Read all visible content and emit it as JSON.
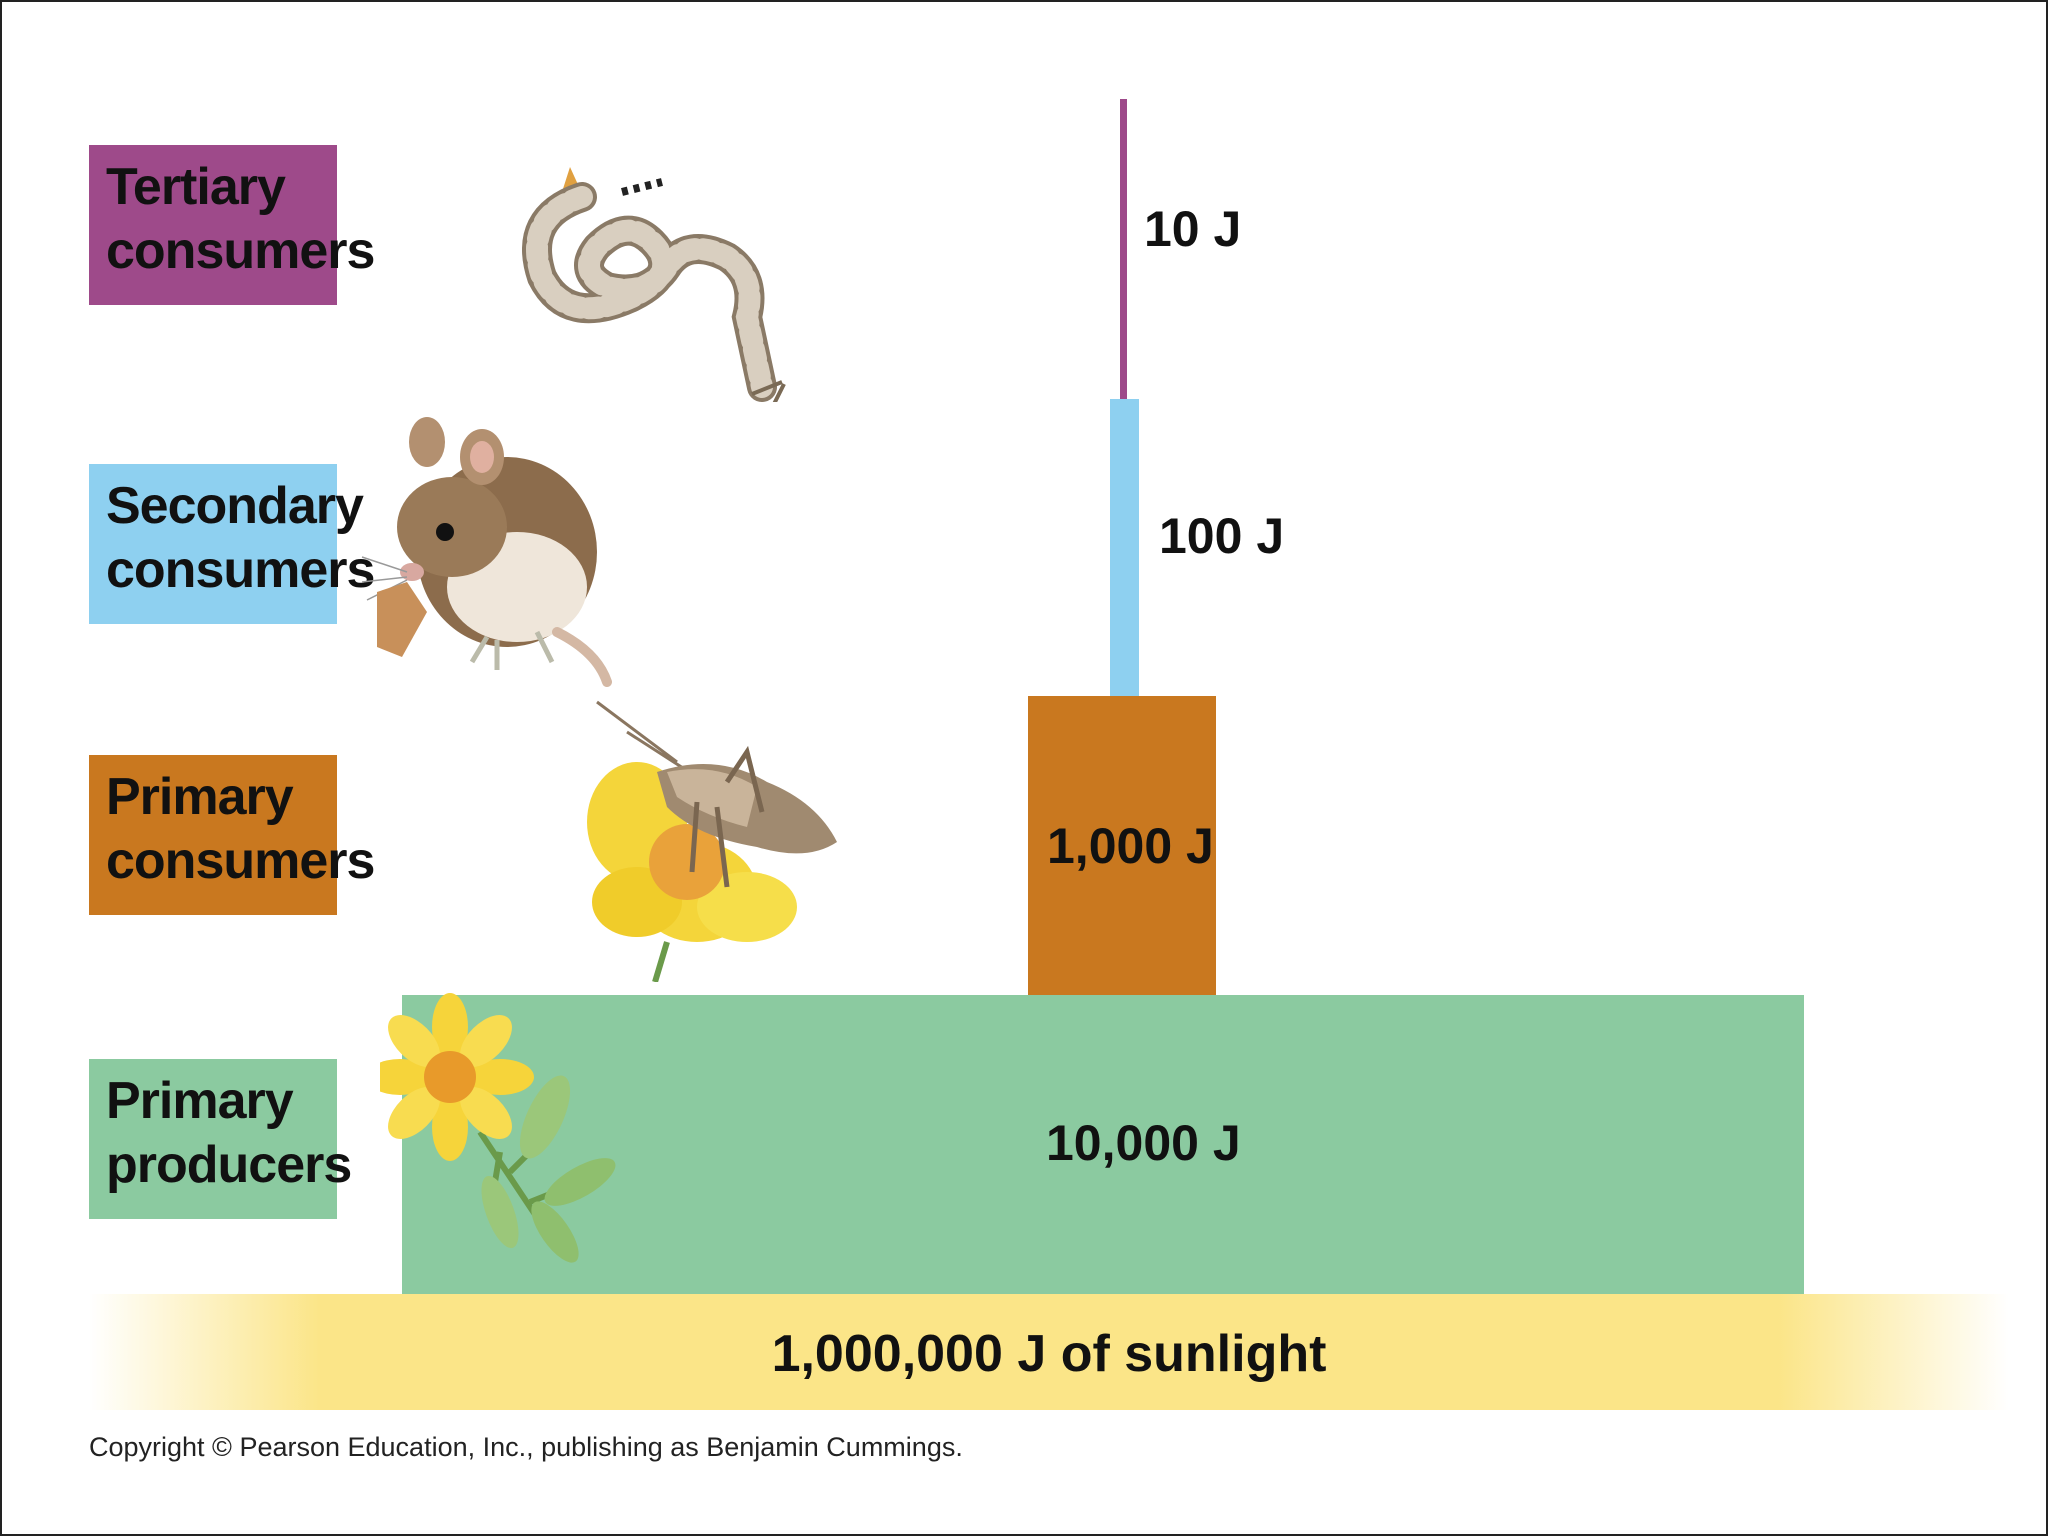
{
  "levels": [
    {
      "label_line1": "Tertiary",
      "label_line2": "consumers",
      "energy": "10 J",
      "color": "#9e4a8a",
      "organism_icon": "snake-icon"
    },
    {
      "label_line1": "Secondary",
      "label_line2": "consumers",
      "energy": "100 J",
      "color": "#8ed0f0",
      "organism_icon": "mouse-icon"
    },
    {
      "label_line1": "Primary",
      "label_line2": "consumers",
      "energy": "1,000 J",
      "color": "#c9781f",
      "organism_icon": "grasshopper-icon"
    },
    {
      "label_line1": "Primary",
      "label_line2": "producers",
      "energy": "10,000 J",
      "color": "#8bcaa0",
      "organism_icon": "flower-icon"
    }
  ],
  "base": {
    "text": "1,000,000 J of sunlight",
    "color": "#fbe588"
  },
  "footer": {
    "copyright": "Copyright © Pearson Education, Inc., publishing as Benjamin Cummings."
  }
}
